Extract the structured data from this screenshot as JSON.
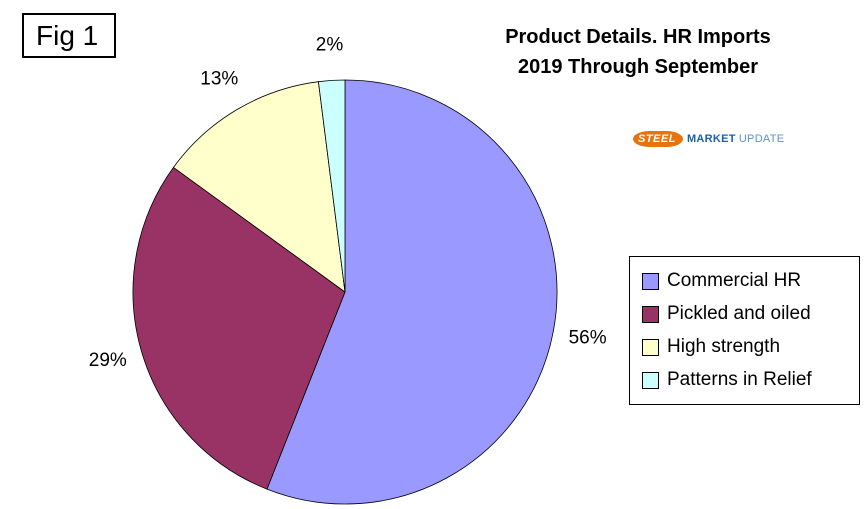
{
  "fig_label": "Fig 1",
  "header": {
    "title_line1": "Product Details. HR Imports",
    "title_line2": "2019 Through September"
  },
  "logo": {
    "steel": "STEEL",
    "market": "MARKET",
    "update": "UPDATE"
  },
  "chart_data": {
    "type": "pie",
    "title": "Product Details. HR Imports 2019 Through September",
    "categories": [
      "Commercial HR",
      "Pickled and oiled",
      "High strength",
      "Patterns in Relief"
    ],
    "values": [
      56,
      29,
      13,
      2
    ],
    "labels": [
      "56%",
      "29%",
      "13%",
      "2%"
    ],
    "colors": [
      "#9999ff",
      "#993366",
      "#ffffcc",
      "#ccffff"
    ],
    "start_angle_deg_from_top": 0,
    "direction": "clockwise",
    "legend_position": "right",
    "slice_border_color": "#000000"
  }
}
